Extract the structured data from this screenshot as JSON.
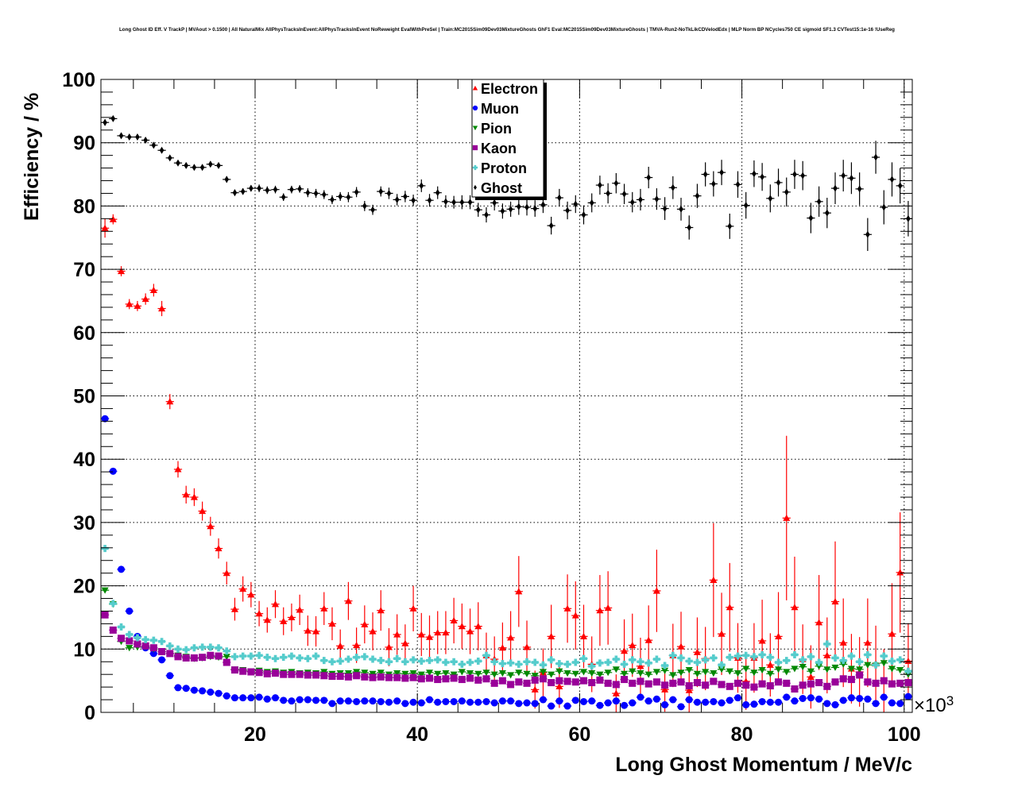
{
  "chart_data": {
    "type": "scatter",
    "title": "Long Ghost ID Eff. V TrackP | MVAout > 0.1500 | All NaturalMix AllPhysTracksInEvent:AllPhysTracksInEvent NoReweight EvalWithPreSel | Train:MC2015Sim09Dev03MixtureGhosts GhF1 Eval:MC2015Sim09Dev03MixtureGhosts | TMVA-Run2-NoTkLikCDVelodEdx | MLP Norm BP NCycles750 CE sigmoid SF1.3 CVTest15:1e-16 !UseReg",
    "xlabel": "Long Ghost Momentum / MeV/c",
    "ylabel": "Efficiency / %",
    "x_multiplier": "×10",
    "x_multiplier_exp": "3",
    "xlim": [
      1,
      101
    ],
    "ylim": [
      0,
      100
    ],
    "x_bin_start": 1,
    "x_bin_width": 1,
    "xticks": [
      "20",
      "40",
      "60",
      "80",
      "100"
    ],
    "yticks": [
      "0",
      "10",
      "20",
      "30",
      "40",
      "50",
      "60",
      "70",
      "80",
      "90",
      "100"
    ],
    "grid": true,
    "legend_position": "top-center",
    "series": [
      {
        "name": "Electron",
        "color": "#ff0000",
        "marker": "triangle-up",
        "values": [
          76.5,
          77.9,
          69.7,
          64.5,
          64.2,
          65.3,
          66.7,
          63.8,
          49.1,
          38.4,
          34.4,
          34.0,
          31.8,
          29.4,
          25.9,
          22.0,
          16.3,
          19.5,
          18.6,
          15.6,
          14.6,
          17.1,
          14.4,
          15.0,
          16.2,
          12.9,
          12.8,
          16.4,
          14.0,
          10.5,
          17.6,
          10.6,
          13.9,
          12.8,
          16.1,
          10.3,
          12.3,
          10.9,
          16.4,
          12.3,
          11.9,
          12.6,
          12.6,
          14.5,
          13.6,
          12.8,
          13.6,
          9.0,
          8.4,
          10.2,
          11.8,
          19.1,
          10.3,
          3.6,
          6.3,
          12.0,
          4.1,
          16.4,
          15.3,
          12.0,
          7.6,
          16.1,
          16.5,
          3.0,
          9.7,
          10.6,
          7.3,
          11.4,
          19.2,
          3.6,
          9.0,
          10.4,
          3.5,
          9.5,
          8.5,
          20.9,
          12.4,
          16.6,
          8.6,
          4.9,
          8.6,
          11.3,
          7.5,
          12.0,
          30.7,
          16.6,
          8.4,
          5.6,
          14.2,
          9.0,
          17.5,
          11.0,
          6.9,
          6.4,
          11.0,
          7.7,
          5.0,
          12.4,
          22.1,
          8.1
        ],
        "errors": [
          1.5,
          0.8,
          0.8,
          0.8,
          0.8,
          0.9,
          1.0,
          1.2,
          1.2,
          1.3,
          1.4,
          1.4,
          1.5,
          1.5,
          1.6,
          1.8,
          1.8,
          2.0,
          2.0,
          2.0,
          2.0,
          2.2,
          2.2,
          2.2,
          2.4,
          2.4,
          2.4,
          2.6,
          2.6,
          2.6,
          3.0,
          2.8,
          3.0,
          3.0,
          3.2,
          3.0,
          3.2,
          3.0,
          3.6,
          3.4,
          3.4,
          3.4,
          3.4,
          3.6,
          3.6,
          3.6,
          3.8,
          3.6,
          3.6,
          4.0,
          4.2,
          5.6,
          4.2,
          3.0,
          3.8,
          5.0,
          3.4,
          5.4,
          5.4,
          5.0,
          4.4,
          5.6,
          5.8,
          3.0,
          5.0,
          5.0,
          4.5,
          5.5,
          6.5,
          3.5,
          5.0,
          5.5,
          3.5,
          5.5,
          5.0,
          9.0,
          6.5,
          7.0,
          5.5,
          4.5,
          5.5,
          6.5,
          5.0,
          7.0,
          13.0,
          8.0,
          5.5,
          5.0,
          7.5,
          6.0,
          9.5,
          7.0,
          5.5,
          5.5,
          7.0,
          6.0,
          5.0,
          8.0,
          9.5,
          6.0
        ]
      },
      {
        "name": "Muon",
        "color": "#0000ff",
        "marker": "circle",
        "values": [
          46.4,
          38.1,
          22.6,
          16.0,
          12.0,
          10.2,
          9.3,
          8.3,
          5.8,
          3.9,
          3.8,
          3.5,
          3.4,
          3.2,
          3.0,
          2.6,
          2.3,
          2.3,
          2.3,
          2.4,
          2.1,
          2.3,
          1.9,
          1.8,
          2.0,
          2.0,
          1.9,
          1.9,
          1.4,
          1.8,
          1.8,
          1.7,
          1.8,
          1.8,
          1.7,
          1.6,
          1.8,
          1.4,
          1.6,
          1.5,
          2.0,
          1.6,
          1.7,
          1.7,
          1.8,
          1.6,
          1.6,
          1.7,
          1.5,
          1.8,
          1.8,
          1.4,
          1.5,
          1.4,
          2.0,
          1.0,
          1.8,
          1.0,
          1.9,
          1.7,
          1.8,
          1.1,
          1.5,
          1.8,
          1.1,
          1.5,
          2.4,
          1.8,
          2.1,
          1.2,
          2.0,
          0.9,
          2.0,
          1.6,
          1.6,
          1.7,
          1.5,
          1.9,
          2.3,
          1.2,
          1.3,
          1.7,
          1.6,
          1.6,
          2.4,
          1.8,
          2.2,
          2.3,
          2.1,
          1.4,
          1.2,
          1.9,
          2.3,
          2.2,
          2.1,
          1.4,
          2.4,
          1.5,
          1.4,
          2.5
        ]
      },
      {
        "name": "Pion",
        "color": "#008800",
        "marker": "triangle-down",
        "values": [
          19.3,
          17.1,
          11.2,
          10.2,
          10.3,
          10.4,
          10.0,
          9.6,
          9.3,
          9.0,
          8.8,
          8.5,
          8.6,
          8.8,
          8.7,
          8.8,
          6.8,
          6.7,
          6.5,
          6.6,
          6.4,
          6.5,
          6.3,
          6.4,
          6.2,
          6.3,
          6.2,
          6.4,
          6.1,
          6.2,
          6.2,
          6.4,
          6.3,
          6.1,
          6.3,
          6.0,
          6.2,
          6.1,
          6.2,
          6.0,
          6.3,
          6.1,
          6.2,
          6.0,
          6.4,
          6.2,
          6.1,
          6.3,
          6.0,
          6.2,
          5.9,
          6.3,
          6.1,
          5.8,
          6.4,
          6.0,
          6.5,
          6.2,
          6.1,
          6.4,
          6.2,
          6.0,
          6.3,
          6.8,
          6.1,
          6.5,
          6.2,
          6.0,
          6.4,
          6.6,
          5.9,
          6.3,
          6.7,
          6.1,
          6.4,
          6.2,
          6.8,
          6.5,
          6.2,
          6.9,
          6.3,
          6.7,
          6.1,
          6.8,
          6.4,
          6.9,
          7.2,
          6.5,
          7.3,
          6.8,
          7.1,
          7.6,
          6.9,
          6.8,
          7.5,
          7.4,
          7.8,
          6.9,
          6.7,
          6.0
        ]
      },
      {
        "name": "Kaon",
        "color": "#990099",
        "marker": "square",
        "values": [
          15.4,
          13.0,
          11.7,
          11.3,
          10.8,
          10.5,
          10.2,
          9.6,
          9.3,
          8.8,
          8.6,
          8.6,
          8.7,
          9.0,
          8.9,
          7.9,
          6.7,
          6.5,
          6.4,
          6.3,
          6.1,
          6.2,
          6.0,
          6.0,
          6.0,
          5.9,
          5.9,
          5.8,
          5.7,
          5.7,
          5.6,
          5.8,
          5.6,
          5.5,
          5.6,
          5.5,
          5.5,
          5.4,
          5.5,
          5.3,
          5.4,
          5.2,
          5.3,
          5.4,
          5.2,
          5.4,
          5.1,
          5.3,
          4.6,
          5.0,
          4.4,
          4.8,
          4.6,
          5.1,
          5.3,
          4.7,
          5.0,
          4.9,
          4.8,
          5.0,
          4.7,
          5.1,
          4.6,
          4.4,
          5.2,
          4.6,
          4.9,
          4.5,
          4.8,
          4.3,
          4.6,
          4.8,
          4.2,
          4.7,
          4.3,
          4.9,
          4.4,
          4.1,
          4.6,
          4.3,
          4.0,
          4.5,
          4.2,
          4.8,
          4.6,
          3.7,
          4.3,
          4.5,
          4.7,
          4.1,
          4.8,
          5.3,
          5.2,
          5.9,
          4.8,
          4.6,
          5.0,
          4.5,
          4.6,
          4.7
        ]
      },
      {
        "name": "Proton",
        "color": "#55cccc",
        "marker": "cross",
        "values": [
          25.9,
          17.2,
          13.5,
          12.3,
          11.8,
          11.5,
          11.4,
          11.2,
          10.5,
          10.0,
          9.9,
          10.2,
          10.3,
          10.3,
          10.2,
          9.7,
          8.8,
          8.9,
          8.9,
          9.0,
          8.7,
          8.5,
          8.7,
          8.9,
          8.6,
          8.5,
          8.9,
          8.2,
          8.0,
          8.1,
          8.4,
          8.7,
          8.8,
          8.4,
          8.2,
          8.0,
          8.5,
          8.0,
          8.3,
          8.1,
          8.2,
          8.3,
          7.9,
          8.0,
          7.6,
          7.9,
          8.1,
          9.0,
          8.0,
          7.7,
          7.8,
          7.6,
          8.0,
          7.9,
          7.5,
          8.3,
          7.7,
          7.6,
          7.9,
          8.5,
          7.3,
          7.8,
          7.9,
          8.4,
          7.6,
          8.3,
          8.0,
          7.8,
          8.4,
          7.4,
          9.0,
          8.6,
          8.1,
          7.9,
          8.3,
          8.6,
          7.5,
          8.7,
          8.9,
          9.0,
          8.8,
          9.1,
          8.7,
          7.9,
          8.2,
          9.1,
          8.3,
          8.8,
          7.9,
          10.8,
          8.6,
          8.2,
          8.9,
          8.0,
          9.1,
          7.5,
          8.9,
          8.1,
          8.3,
          6.5
        ]
      },
      {
        "name": "Ghost",
        "color": "#000000",
        "marker": "diamond",
        "values": [
          93.2,
          93.8,
          91.1,
          90.9,
          90.9,
          90.4,
          89.6,
          88.8,
          87.6,
          86.8,
          86.4,
          86.1,
          86.1,
          86.6,
          86.4,
          84.2,
          82.1,
          82.3,
          82.8,
          82.8,
          82.5,
          82.6,
          81.4,
          82.6,
          82.7,
          82.1,
          82.0,
          81.8,
          81.0,
          81.5,
          81.4,
          82.2,
          80.0,
          79.4,
          82.3,
          82.0,
          81.0,
          81.5,
          80.9,
          83.2,
          80.9,
          82.1,
          80.7,
          80.6,
          80.6,
          80.6,
          79.4,
          78.6,
          80.5,
          79.2,
          79.5,
          79.9,
          79.8,
          79.6,
          80.2,
          76.9,
          81.3,
          79.3,
          80.3,
          78.6,
          80.5,
          83.3,
          82.0,
          83.6,
          81.9,
          80.6,
          81.0,
          84.5,
          81.1,
          79.6,
          82.9,
          79.5,
          76.6,
          81.6,
          85.0,
          83.5,
          85.3,
          76.8,
          83.4,
          80.1,
          85.1,
          84.6,
          81.2,
          83.7,
          82.2,
          85.0,
          84.8,
          78.1,
          80.7,
          78.9,
          82.8,
          84.8,
          84.4,
          82.7,
          75.5,
          87.7,
          79.8,
          84.2,
          83.2,
          78.0
        ],
        "errors": [
          0.5,
          0.3,
          0.3,
          0.3,
          0.3,
          0.3,
          0.3,
          0.4,
          0.4,
          0.4,
          0.4,
          0.4,
          0.4,
          0.4,
          0.4,
          0.5,
          0.5,
          0.5,
          0.5,
          0.6,
          0.6,
          0.6,
          0.6,
          0.6,
          0.6,
          0.7,
          0.7,
          0.7,
          0.7,
          0.7,
          0.8,
          0.8,
          0.8,
          0.8,
          0.8,
          0.9,
          0.9,
          0.9,
          0.9,
          1.0,
          1.0,
          1.0,
          1.0,
          1.0,
          1.1,
          1.1,
          1.1,
          1.2,
          1.2,
          1.2,
          1.2,
          1.3,
          1.3,
          1.3,
          1.3,
          1.4,
          1.4,
          1.4,
          1.4,
          1.5,
          1.5,
          1.5,
          1.6,
          1.6,
          1.6,
          1.6,
          1.7,
          1.7,
          1.7,
          1.8,
          1.8,
          1.8,
          1.9,
          1.9,
          1.9,
          2.0,
          2.0,
          2.0,
          2.1,
          2.1,
          2.1,
          2.2,
          2.2,
          2.2,
          2.3,
          2.3,
          2.3,
          2.4,
          2.4,
          2.4,
          2.5,
          2.5,
          2.5,
          2.6,
          2.6,
          2.6,
          2.7,
          2.7,
          2.8,
          2.8
        ]
      }
    ]
  }
}
